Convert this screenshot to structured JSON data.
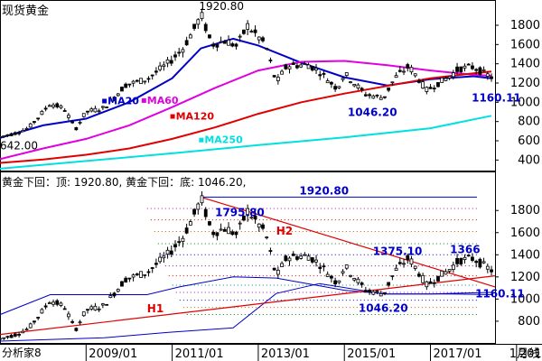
{
  "chart_data": [
    {
      "type": "line",
      "title": "现货黄金",
      "x_range": [
        "2007-01",
        "2018-07"
      ],
      "ylim": [
        300,
        1950
      ],
      "y_ticks": [
        400,
        600,
        800,
        1000,
        1200,
        1400,
        1600,
        1800
      ],
      "price": {
        "name": "现货黄金",
        "points": [
          [
            "2007-01",
            642
          ],
          [
            "2007-05",
            675
          ],
          [
            "2007-09",
            735
          ],
          [
            "2008-01",
            900
          ],
          [
            "2008-03",
            990
          ],
          [
            "2008-07",
            930
          ],
          [
            "2008-10",
            720
          ],
          [
            "2009-01",
            900
          ],
          [
            "2009-06",
            940
          ],
          [
            "2009-12",
            1180
          ],
          [
            "2010-06",
            1240
          ],
          [
            "2010-12",
            1410
          ],
          [
            "2011-04",
            1560
          ],
          [
            "2011-08",
            1820
          ],
          [
            "2011-09",
            1920.8
          ],
          [
            "2011-12",
            1600
          ],
          [
            "2012-04",
            1640
          ],
          [
            "2012-07",
            1580
          ],
          [
            "2012-10",
            1795.8
          ],
          [
            "2013-03",
            1600
          ],
          [
            "2013-06",
            1200
          ],
          [
            "2013-09",
            1380
          ],
          [
            "2014-03",
            1390
          ],
          [
            "2014-06",
            1320
          ],
          [
            "2014-11",
            1140
          ],
          [
            "2015-01",
            1300
          ],
          [
            "2015-07",
            1080
          ],
          [
            "2015-12",
            1046.2
          ],
          [
            "2016-03",
            1250
          ],
          [
            "2016-07",
            1375.1
          ],
          [
            "2016-12",
            1125
          ],
          [
            "2017-06",
            1260
          ],
          [
            "2017-09",
            1350
          ],
          [
            "2018-01",
            1366
          ],
          [
            "2018-04",
            1300
          ],
          [
            "2018-06",
            1260
          ]
        ]
      },
      "series": [
        {
          "name": "MA20",
          "color": "#0000c8",
          "points": [
            [
              "2007-01",
              630
            ],
            [
              "2008-01",
              760
            ],
            [
              "2009-01",
              830
            ],
            [
              "2010-01",
              1000
            ],
            [
              "2011-01",
              1250
            ],
            [
              "2011-09",
              1560
            ],
            [
              "2012-06",
              1660
            ],
            [
              "2013-01",
              1590
            ],
            [
              "2014-01",
              1410
            ],
            [
              "2015-01",
              1260
            ],
            [
              "2016-01",
              1175
            ],
            [
              "2017-01",
              1240
            ],
            [
              "2018-01",
              1270
            ],
            [
              "2018-06",
              1250
            ]
          ]
        },
        {
          "name": "MA60",
          "color": "#e000e0",
          "points": [
            [
              "2007-01",
              410
            ],
            [
              "2008-01",
              520
            ],
            [
              "2009-01",
              620
            ],
            [
              "2010-01",
              760
            ],
            [
              "2011-01",
              950
            ],
            [
              "2012-01",
              1150
            ],
            [
              "2013-01",
              1330
            ],
            [
              "2014-01",
              1420
            ],
            [
              "2015-01",
              1430
            ],
            [
              "2016-01",
              1385
            ],
            [
              "2017-01",
              1330
            ],
            [
              "2018-01",
              1285
            ],
            [
              "2018-06",
              1275
            ]
          ]
        },
        {
          "name": "MA120",
          "color": "#e00000",
          "points": [
            [
              "2007-01",
              370
            ],
            [
              "2008-01",
              405
            ],
            [
              "2009-01",
              455
            ],
            [
              "2010-01",
              520
            ],
            [
              "2011-01",
              620
            ],
            [
              "2012-01",
              740
            ],
            [
              "2013-01",
              880
            ],
            [
              "2014-01",
              1000
            ],
            [
              "2015-01",
              1090
            ],
            [
              "2016-01",
              1170
            ],
            [
              "2017-01",
              1250
            ],
            [
              "2018-01",
              1300
            ],
            [
              "2018-06",
              1320
            ]
          ]
        },
        {
          "name": "MA250",
          "color": "#00e0e0",
          "points": [
            [
              "2007-01",
              310
            ],
            [
              "2009-01",
              390
            ],
            [
              "2011-01",
              470
            ],
            [
              "2013-01",
              555
            ],
            [
              "2015-01",
              635
            ],
            [
              "2017-01",
              730
            ],
            [
              "2018-06",
              860
            ]
          ]
        }
      ],
      "legend": [
        {
          "label": "MA20",
          "color": "#0000c8"
        },
        {
          "label": "MA60",
          "color": "#e000e0"
        },
        {
          "label": "MA120",
          "color": "#e00000"
        },
        {
          "label": "MA250",
          "color": "#00e0e0"
        }
      ],
      "annotations": [
        {
          "text": "1920.80",
          "x": "2011-09",
          "y": 1920.8,
          "color": "#000000"
        },
        {
          "text": "642.00",
          "x": "2007-01",
          "y": 642,
          "color": "#000000"
        },
        {
          "text": "1046.20",
          "x": "2015-12",
          "y": 1046.2,
          "color": "#0000c8"
        },
        {
          "text": "1160.11",
          "x": "2018-03",
          "y": 1160.11,
          "color": "#0000c8"
        }
      ]
    },
    {
      "type": "line",
      "title": "黄金下回：顶: 1920.80, 黄金下回：底: 1046.20,",
      "x_range": [
        "2007-01",
        "2018-07"
      ],
      "ylim": [
        620,
        2030
      ],
      "y_ticks": [
        800,
        1000,
        1200,
        1400,
        1600,
        1800
      ],
      "x_ticks": [
        "2009/01",
        "2011/01",
        "2013/01",
        "2015/01",
        "2017/01",
        "201"
      ],
      "x_tick_dates": [
        "2009-01",
        "2011-01",
        "2013-01",
        "2015-01",
        "2017-01",
        "2019-01"
      ],
      "top_level": 1920.8,
      "retracement_levels": [
        1818,
        1715,
        1610,
        1500,
        1400,
        1300,
        1210,
        1125,
        1060,
        990,
        925,
        860
      ],
      "envelope": [
        [
          "2007-01",
          860
        ],
        [
          "2008-03",
          1040
        ],
        [
          "2008-06",
          1040
        ],
        [
          "2010-06",
          1040
        ],
        [
          "2011-03",
          1110
        ],
        [
          "2012-06",
          1200
        ],
        [
          "2013-06",
          1190
        ],
        [
          "2015-01",
          1080
        ],
        [
          "2016-01",
          1046.2
        ],
        [
          "2017-01",
          1046.2
        ],
        [
          "2018-06",
          1060
        ]
      ],
      "trend_lines": [
        {
          "name": "H1",
          "color": "#e00000",
          "points": [
            [
              "2007-01",
              680
            ],
            [
              "2018-07",
              1210
            ]
          ]
        },
        {
          "name": "H2",
          "color": "#e00000",
          "points": [
            [
              "2011-09",
              1920.8
            ],
            [
              "2018-07",
              1110
            ]
          ]
        }
      ],
      "lower_envelope": [
        [
          "2007-01",
          620
        ],
        [
          "2009-06",
          650
        ],
        [
          "2010-12",
          700
        ],
        [
          "2012-06",
          740
        ],
        [
          "2013-06",
          1050
        ],
        [
          "2014-06",
          1140
        ],
        [
          "2015-12",
          1046.2
        ],
        [
          "2017-06",
          1046.2
        ],
        [
          "2018-06",
          1040
        ]
      ],
      "annotations": [
        {
          "text": "1920.80",
          "x": "2014-06",
          "y": 1920.8,
          "color": "#0000c8"
        },
        {
          "text": "1795.80",
          "x": "2012-06",
          "y": 1795.8,
          "color": "#0000c8"
        },
        {
          "text": "H2",
          "x": "2013-06",
          "y": 1580,
          "color": "#e00000"
        },
        {
          "text": "1375.10",
          "x": "2016-07",
          "y": 1375.1,
          "color": "#0000c8"
        },
        {
          "text": "1366",
          "x": "2018-01",
          "y": 1366,
          "color": "#0000c8"
        },
        {
          "text": "1160.11",
          "x": "2018-03",
          "y": 1160.11,
          "color": "#0000c8"
        },
        {
          "text": "1046.20",
          "x": "2015-12",
          "y": 1046.2,
          "color": "#0000c8"
        },
        {
          "text": "H1",
          "x": "2010-06",
          "y": 880,
          "color": "#e00000"
        }
      ]
    }
  ],
  "footer": {
    "source_label": "分析家8",
    "x_tail": "1月线"
  }
}
